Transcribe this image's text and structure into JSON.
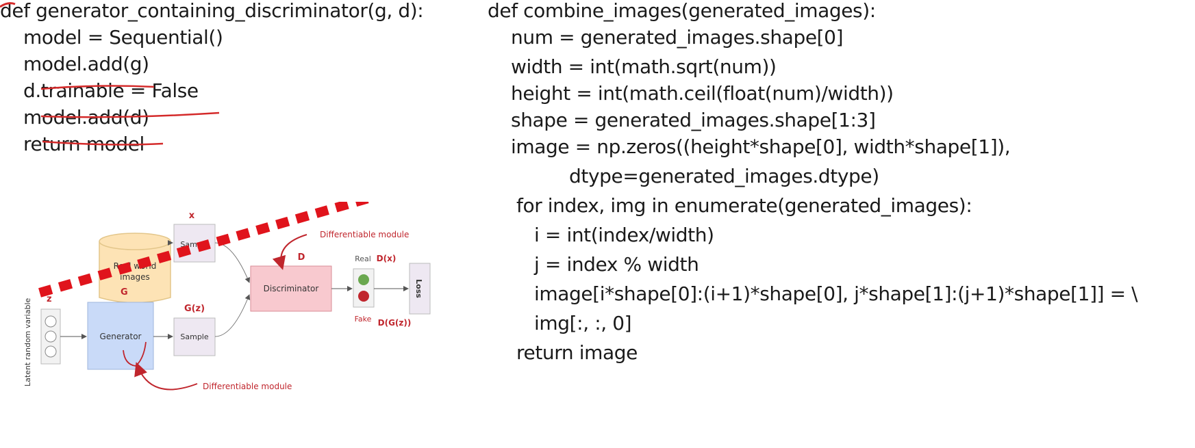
{
  "left_code": {
    "lines": [
      "def generator_containing_discriminator(g, d):",
      "    model = Sequential()",
      "    model.add(g)",
      "    d.trainable = False",
      "    model.add(d)",
      "    return model"
    ]
  },
  "right_code": {
    "lines": [
      "def combine_images(generated_images):",
      "    num = generated_images.shape[0]",
      "    width = int(math.sqrt(num))",
      "    height = int(math.ceil(float(num)/width))",
      "    shape = generated_images.shape[1:3]",
      "    image = np.zeros((height*shape[0], width*shape[1]),",
      "              dtype=generated_images.dtype)",
      "    for index, img in enumerate(generated_images):",
      "        i = int(index/width)",
      "        j = index % width",
      "        image[i*shape[0]:(i+1)*shape[0], j*shape[1]:(j+1)*shape[1]] = \\",
      "        img[:, :, 0]",
      "    return image"
    ]
  },
  "diagram": {
    "real_world_images": "Real world images",
    "real_world_line1": "Real world",
    "real_world_line2": "images",
    "sample_label": "Sample",
    "x_label": "x",
    "generator_label": "Generator",
    "gz_label": "G(z)",
    "discriminator_label": "Discriminator",
    "d_label": "D",
    "real_label": "Real",
    "fake_label": "Fake",
    "dx_label": "D(x)",
    "dgz_label": "D(G(z))",
    "loss_label": "Loss",
    "differentiable_module_top": "Differentiable module",
    "differentiable_module_bottom": "Differentiable module",
    "latent_label": "Latent random variable",
    "z_label": "z",
    "g_label": "G"
  },
  "colors": {
    "annotation_red": "#d42a2a",
    "diagram_red": "#c0262d",
    "generator_fill": "#c9daf8",
    "discriminator_fill": "#f8c9cf",
    "real_world_fill": "#fde3b5"
  }
}
